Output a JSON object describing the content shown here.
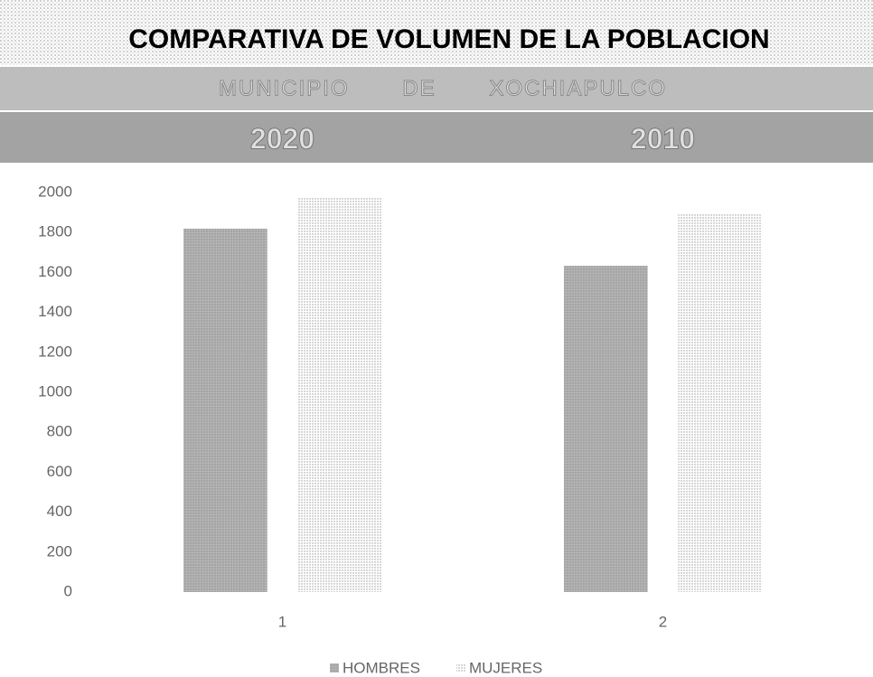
{
  "chart_data": {
    "type": "bar",
    "title": "COMPARATIVA DE VOLUMEN DE LA POBLACION",
    "subtitle": "MUNICIPIO DE XOCHIAPULCO",
    "annotations": [
      "2020",
      "2010"
    ],
    "categories": [
      "1",
      "2"
    ],
    "series": [
      {
        "name": "HOMBRES",
        "color": "#b4b4b4",
        "values": [
          1819,
          1633
        ]
      },
      {
        "name": "MUJERES",
        "color": "#d6d6d6",
        "values": [
          1977,
          1891
        ]
      }
    ],
    "ylim": [
      0,
      2000
    ],
    "yticks": [
      0,
      200,
      400,
      600,
      800,
      1000,
      1200,
      1400,
      1600,
      1800,
      2000
    ],
    "grid": false,
    "legend": "bottom"
  }
}
